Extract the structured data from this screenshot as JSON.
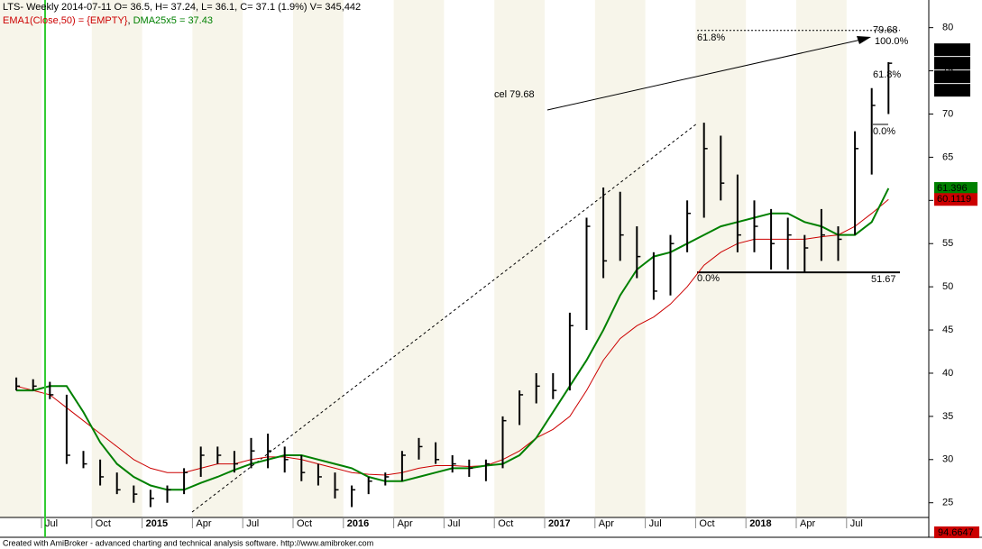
{
  "chart_data": {
    "type": "ohlc",
    "header": {
      "line1": "LTS- Weekly 2014-07-11 O= 36.5, H= 37.24, L= 36.1, C= 37.1 (1.9%) V= 345,442",
      "line2": [
        {
          "text": "EMA1(Close,50) = {EMPTY}",
          "color": "#cc0000"
        },
        {
          "text": ", ",
          "color": "#000000"
        },
        {
          "text": "DMA25x5 = 37.43",
          "color": "#008000"
        }
      ]
    },
    "footer": "Created with AmiBroker - advanced charting and technical analysis software. http://www.amibroker.com",
    "x": [
      "2014-05",
      "2014-06",
      "2014-07",
      "2014-08",
      "2014-09",
      "2014-10",
      "2014-11",
      "2014-12",
      "2015-01",
      "2015-02",
      "2015-03",
      "2015-04",
      "2015-05",
      "2015-06",
      "2015-07",
      "2015-08",
      "2015-09",
      "2015-10",
      "2015-11",
      "2015-12",
      "2016-01",
      "2016-02",
      "2016-03",
      "2016-04",
      "2016-05",
      "2016-06",
      "2016-07",
      "2016-08",
      "2016-09",
      "2016-10",
      "2016-11",
      "2016-12",
      "2017-01",
      "2017-02",
      "2017-03",
      "2017-04",
      "2017-05",
      "2017-06",
      "2017-07",
      "2017-08",
      "2017-09",
      "2017-10",
      "2017-11",
      "2017-12",
      "2018-01",
      "2018-02",
      "2018-03",
      "2018-04",
      "2018-05",
      "2018-06",
      "2018-07",
      "2018-08",
      "2018-09"
    ],
    "high": [
      39.5,
      39.3,
      39,
      37.5,
      31,
      30,
      28.5,
      27,
      26.5,
      27,
      29,
      31.5,
      31.5,
      31,
      32.5,
      33,
      31.5,
      30.5,
      29.5,
      28.5,
      27,
      28,
      28.5,
      31,
      32.5,
      32,
      30.5,
      30,
      30,
      35,
      38,
      40,
      40,
      47,
      58,
      61.5,
      61,
      57,
      54,
      56,
      60,
      69,
      67.5,
      63,
      60,
      59,
      58,
      56,
      59,
      57,
      68,
      73,
      76
    ],
    "low": [
      38,
      38,
      37,
      29.5,
      29,
      27,
      26,
      25,
      24.5,
      25,
      26,
      28,
      29.5,
      28.5,
      29,
      29,
      28.5,
      27.5,
      27,
      25.5,
      24.5,
      26,
      27,
      27.5,
      30,
      29.5,
      28.5,
      28,
      27.5,
      29,
      34,
      36.5,
      37,
      38,
      45,
      51,
      53,
      51,
      48.5,
      49,
      54,
      58,
      60,
      54,
      54,
      52,
      52,
      51.7,
      53,
      53,
      56,
      63,
      70
    ],
    "close": [
      38.5,
      38.5,
      37.5,
      30.5,
      29.5,
      28,
      26.5,
      26,
      25.5,
      26.5,
      28.5,
      30.5,
      30.5,
      29.5,
      31,
      31,
      30,
      28.5,
      28,
      26.5,
      26.5,
      27.5,
      28,
      30.5,
      31.5,
      30,
      29.5,
      29,
      29.5,
      34.5,
      37.5,
      38.5,
      38,
      45.5,
      57,
      53,
      56,
      53.5,
      49.5,
      55,
      58.5,
      66,
      62,
      56,
      57,
      55,
      56,
      54.5,
      56,
      55.5,
      66,
      71,
      75.88
    ],
    "ema": [
      38.5,
      38,
      37.5,
      36,
      34.5,
      33,
      31.5,
      30,
      29,
      28.5,
      28.5,
      29,
      29.5,
      29.5,
      30,
      30.3,
      30.3,
      30,
      29.5,
      29,
      28.5,
      28.3,
      28.2,
      28.5,
      29,
      29.3,
      29.3,
      29.2,
      29.3,
      30,
      31,
      32.5,
      33.5,
      35,
      38,
      41.5,
      44,
      45.5,
      46.5,
      48,
      50,
      52.5,
      54,
      55,
      55.5,
      55.5,
      55.5,
      55.5,
      55.8,
      56,
      57,
      58.5,
      60.1119
    ],
    "dma": [
      38,
      38,
      38.5,
      38.5,
      35.5,
      32,
      29.5,
      28,
      27,
      26.5,
      26.5,
      27.3,
      28,
      28.8,
      29.5,
      30,
      30.5,
      30.5,
      30,
      29.5,
      29,
      28,
      27.5,
      27.5,
      28,
      28.5,
      29,
      29,
      29.3,
      29.5,
      30.5,
      32.5,
      35.5,
      38.5,
      41.5,
      45,
      49,
      52,
      53.5,
      54,
      55,
      56,
      57,
      57.5,
      58,
      58.5,
      58.5,
      57.5,
      57,
      56,
      56,
      57.5,
      61.396
    ],
    "price_color": "#000000",
    "ema_color": "#cc0000",
    "dma_color": "#008000",
    "ylim": [
      23.3,
      83.2
    ],
    "yticks": [
      25,
      30,
      35,
      40,
      45,
      50,
      55,
      60,
      65,
      70,
      75,
      80
    ],
    "xticks": [
      {
        "value": "2014-07",
        "label": "Jul"
      },
      {
        "value": "2014-10",
        "label": "Oct"
      },
      {
        "value": "2015-01",
        "label": "2015"
      },
      {
        "value": "2015-04",
        "label": "Apr"
      },
      {
        "value": "2015-07",
        "label": "Jul"
      },
      {
        "value": "2015-10",
        "label": "Oct"
      },
      {
        "value": "2016-01",
        "label": "2016"
      },
      {
        "value": "2016-04",
        "label": "Apr"
      },
      {
        "value": "2016-07",
        "label": "Jul"
      },
      {
        "value": "2016-10",
        "label": "Oct"
      },
      {
        "value": "2017-01",
        "label": "2017"
      },
      {
        "value": "2017-04",
        "label": "Apr"
      },
      {
        "value": "2017-07",
        "label": "Jul"
      },
      {
        "value": "2017-10",
        "label": "Oct"
      },
      {
        "value": "2018-01",
        "label": "2018"
      },
      {
        "value": "2018-04",
        "label": "Apr"
      },
      {
        "value": "2018-07",
        "label": "Jul"
      }
    ],
    "price_tags": [
      {
        "value": 75.88,
        "label": "75.88"
      },
      {
        "value": 75.88,
        "label": "75.88"
      },
      {
        "value": 75.88,
        "label": "75.88"
      },
      {
        "value": 75.88,
        "label": "75.88"
      }
    ],
    "ma_tags": [
      {
        "value": 61.396,
        "label": "61.396",
        "color": "#008000"
      },
      {
        "value": 60.1119,
        "label": "60.1119",
        "color": "#cc0000"
      }
    ],
    "volume_tag": "94.6647",
    "levels": [
      {
        "value": 79.68,
        "label": "79.68"
      },
      {
        "value": 51.67,
        "label": "51.67"
      }
    ],
    "annotations": [
      "61.8%",
      "100.0%",
      "61.8%",
      "0.0%",
      "cel 79.68",
      "0.0%"
    ]
  }
}
